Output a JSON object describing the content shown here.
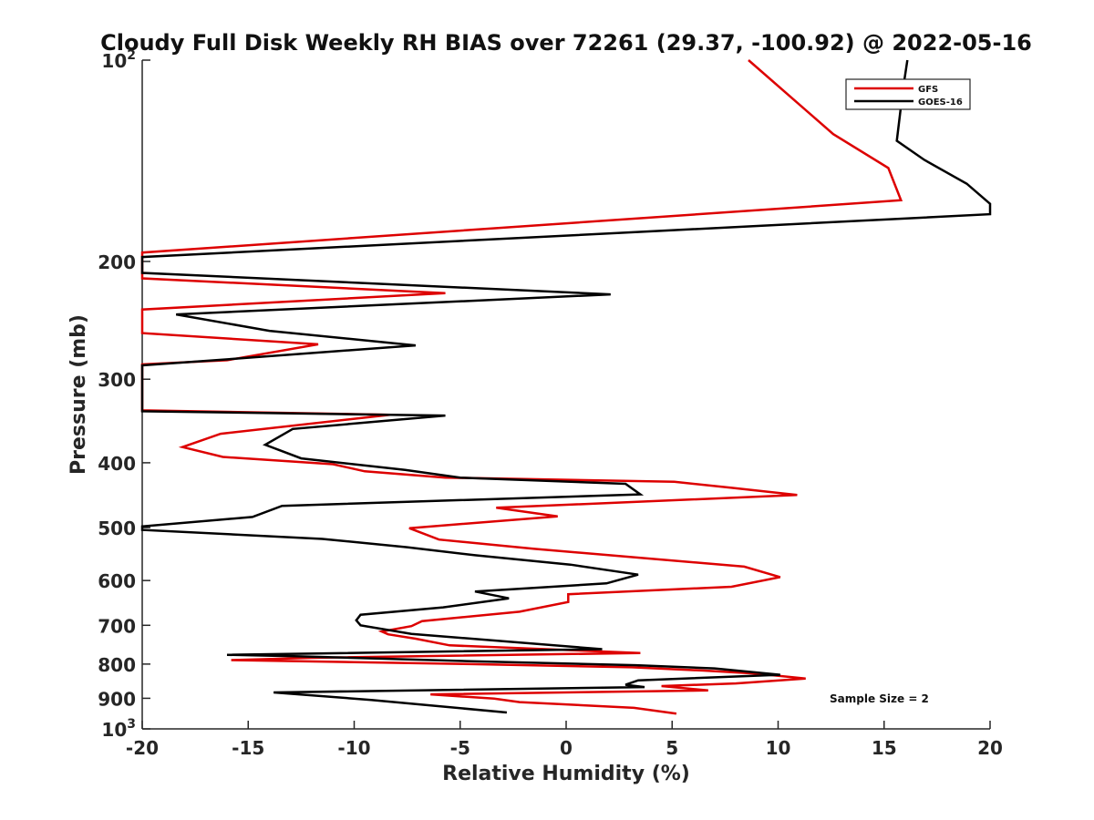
{
  "chart_data": {
    "type": "line",
    "title": "Cloudy Full Disk Weekly RH BIAS over 72261 (29.37, -100.92) @ 2022-05-16",
    "xlabel": "Relative Humidity (%)",
    "ylabel": "Pressure (mb)",
    "xlim": [
      -20,
      20
    ],
    "ylim": [
      100,
      1000
    ],
    "yscale": "log",
    "y_reversed": true,
    "x_ticks": [
      "-20",
      "-15",
      "-10",
      "-5",
      "0",
      "5",
      "10",
      "15",
      "20"
    ],
    "y_ticks": [
      {
        "value": 100,
        "label": "10",
        "sup": "2"
      },
      {
        "value": 200,
        "label": "200"
      },
      {
        "value": 300,
        "label": "300"
      },
      {
        "value": 400,
        "label": "400"
      },
      {
        "value": 500,
        "label": "500"
      },
      {
        "value": 600,
        "label": "600"
      },
      {
        "value": 700,
        "label": "700"
      },
      {
        "value": 800,
        "label": "800"
      },
      {
        "value": 900,
        "label": "900"
      },
      {
        "value": 1000,
        "label": "10",
        "sup": "3"
      }
    ],
    "legend_position": "top-right",
    "annotation": "Sample Size = 2",
    "series": [
      {
        "name": "GFS",
        "color": "#dd0000",
        "points": [
          [
            8.6,
            100
          ],
          [
            12.6,
            129
          ],
          [
            15.2,
            145
          ],
          [
            15.8,
            162
          ],
          [
            -20,
            194
          ],
          [
            -20,
            212
          ],
          [
            -5.7,
            223
          ],
          [
            -20,
            236
          ],
          [
            -20,
            256
          ],
          [
            -11.7,
            266
          ],
          [
            -16,
            281
          ],
          [
            -20,
            285
          ],
          [
            -20,
            334
          ],
          [
            -8.3,
            339
          ],
          [
            -16.3,
            362
          ],
          [
            -18.1,
            379
          ],
          [
            -16.2,
            392
          ],
          [
            -11,
            402
          ],
          [
            -9.5,
            412
          ],
          [
            -5.7,
            421
          ],
          [
            5.1,
            427
          ],
          [
            7.8,
            436
          ],
          [
            10.9,
            447
          ],
          [
            -3.3,
            467
          ],
          [
            -0.4,
            481
          ],
          [
            -7.4,
            501
          ],
          [
            -6,
            521
          ],
          [
            -1.5,
            538
          ],
          [
            3,
            553
          ],
          [
            8.4,
            572
          ],
          [
            10.1,
            593
          ],
          [
            7.8,
            613
          ],
          [
            0.1,
            629
          ],
          [
            0.1,
            646
          ],
          [
            -2.2,
            668
          ],
          [
            -6.8,
            690
          ],
          [
            -7.3,
            702
          ],
          [
            -8.7,
            715
          ],
          [
            -8.4,
            722
          ],
          [
            -7.1,
            733
          ],
          [
            -5.5,
            750
          ],
          [
            3.5,
            770
          ],
          [
            -12,
            783
          ],
          [
            -15.8,
            789
          ],
          [
            -4.5,
            800
          ],
          [
            3.1,
            809
          ],
          [
            6.5,
            818
          ],
          [
            9,
            827
          ],
          [
            11.3,
            841
          ],
          [
            8,
            855
          ],
          [
            4.5,
            863
          ],
          [
            6.7,
            876
          ],
          [
            -6.4,
            888
          ],
          [
            -3.4,
            901
          ],
          [
            -2.2,
            912
          ],
          [
            3.2,
            930
          ],
          [
            5.2,
            949
          ]
        ]
      },
      {
        "name": "GOES-16",
        "color": "#000000",
        "points": [
          [
            16.1,
            100
          ],
          [
            15.9,
            110
          ],
          [
            15.6,
            132
          ],
          [
            16.9,
            141
          ],
          [
            18.9,
            153
          ],
          [
            20,
            164
          ],
          [
            20,
            170
          ],
          [
            -20,
            197
          ],
          [
            -20,
            208
          ],
          [
            2.1,
            224
          ],
          [
            -18.4,
            240
          ],
          [
            -14,
            254
          ],
          [
            -7.1,
            267
          ],
          [
            -15.9,
            280
          ],
          [
            -20,
            286
          ],
          [
            -20,
            335
          ],
          [
            -5.7,
            340
          ],
          [
            -12.9,
            356
          ],
          [
            -14.2,
            376
          ],
          [
            -12.5,
            394
          ],
          [
            -7.6,
            410
          ],
          [
            -5,
            421
          ],
          [
            2.8,
            430
          ],
          [
            3.5,
            446
          ],
          [
            -13.4,
            464
          ],
          [
            -14.8,
            482
          ],
          [
            -20,
            498
          ],
          [
            -20,
            504
          ],
          [
            -11.5,
            520
          ],
          [
            -7.5,
            535
          ],
          [
            -4.3,
            550
          ],
          [
            0.2,
            568
          ],
          [
            3.4,
            588
          ],
          [
            1.9,
            606
          ],
          [
            -4.3,
            623
          ],
          [
            -2.7,
            638
          ],
          [
            -5.8,
            658
          ],
          [
            -9.7,
            675
          ],
          [
            -9.9,
            688
          ],
          [
            -9.7,
            700
          ],
          [
            -7.3,
            721
          ],
          [
            1.7,
            760
          ],
          [
            -16,
            775
          ],
          [
            -12.6,
            779
          ],
          [
            -4.5,
            792
          ],
          [
            3.3,
            803
          ],
          [
            7,
            812
          ],
          [
            10.1,
            830
          ],
          [
            3.4,
            846
          ],
          [
            2.8,
            859
          ],
          [
            3.7,
            866
          ],
          [
            -13.8,
            882
          ],
          [
            -9.2,
            905
          ],
          [
            -2.8,
            945
          ]
        ]
      }
    ]
  }
}
